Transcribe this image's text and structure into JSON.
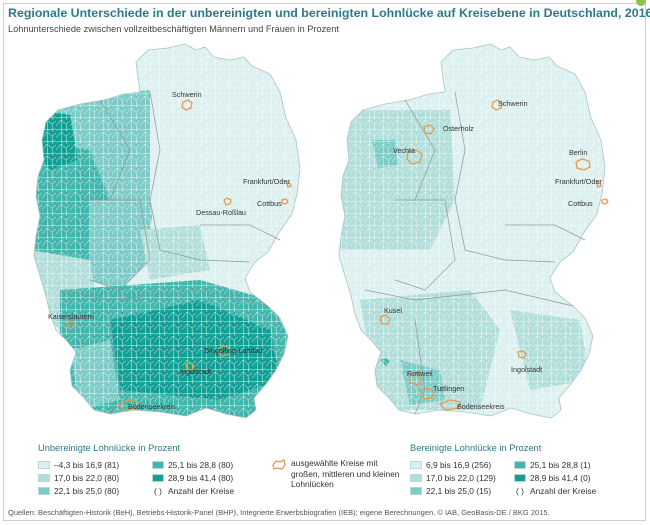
{
  "title": "Regionale Unterschiede in der unbereinigten und bereinigten Lohnlücke auf Kreisebene in Deutschland, 2016",
  "subtitle": "Lohnunterschiede zwischen vollzeitbeschäftigten Männern und Frauen in Prozent",
  "colors": {
    "c1": "#dcf0ef",
    "c2": "#b1dedb",
    "c3": "#7ccbc6",
    "c4": "#42b5ad",
    "c5": "#119e94",
    "border": "#ffffff",
    "state_border": "#7f8c8d",
    "selected": "#e39b54",
    "title": "#2a7b8a"
  },
  "left_map": {
    "labels": {
      "schwerin": "Schwerin",
      "frankfurt": "Frankfurt/Oder",
      "cottbus": "Cottbus",
      "dessau": "Dessau-Roßlau",
      "kaiserslautern": "Kaiserslautern",
      "dingolfing": "Dingolfing-Landau",
      "ingolstadt": "Ingolstadt",
      "bodenseekreis": "Bodenseekreis"
    },
    "legend": {
      "title": "Unbereinigte Lohnlücke in Prozent",
      "items": [
        {
          "range": "–4,3 bis 16,9",
          "count": "(81)"
        },
        {
          "range": "17,0 bis 22,0",
          "count": "(80)"
        },
        {
          "range": "22,1 bis 25,0",
          "count": "(80)"
        },
        {
          "range": "25,1 bis 28,8",
          "count": "(80)"
        },
        {
          "range": "28,9 bis 41,4",
          "count": "(80)"
        }
      ],
      "paren_symbol": "( )",
      "paren_text": "Anzahl der Kreise"
    }
  },
  "right_map": {
    "labels": {
      "osterholz": "Osterholz",
      "vechta": "Vechta",
      "schwerin": "Schwerin",
      "berlin": "Berlin",
      "frankfurt": "Frankfurt/Oder",
      "cottbus": "Cottbus",
      "kusel": "Kusel",
      "rottweil": "Rottweil",
      "tuttlingen": "Tuttlingen",
      "ingolstadt": "Ingolstadt",
      "bodenseekreis": "Bodenseekreis"
    },
    "legend": {
      "title": "Bereinigte Lohnlücke in Prozent",
      "items": [
        {
          "range": "6,9 bis 16,9",
          "count": "(256)"
        },
        {
          "range": "17,0 bis 22,0",
          "count": "(129)"
        },
        {
          "range": "22,1 bis 25,0",
          "count": "(15)"
        },
        {
          "range": "25,1 bis 28,8",
          "count": "(1)"
        },
        {
          "range": "28,9 bis 41,4",
          "count": "(0)"
        }
      ],
      "paren_symbol": "( )",
      "paren_text": "Anzahl der Kreise"
    }
  },
  "selected_legend": "ausgewählte Kreise mit großen, mittleren und kleinen Lohnlücken",
  "source": "Quellen: Beschäftigten-Historik (BeH), Betriebs-Historik-Panel (BHP), Integrierte Erwerbsbiografien (IEB); eigene Berechnungen. © IAB, GeoBasis-DE / BKG 2015."
}
